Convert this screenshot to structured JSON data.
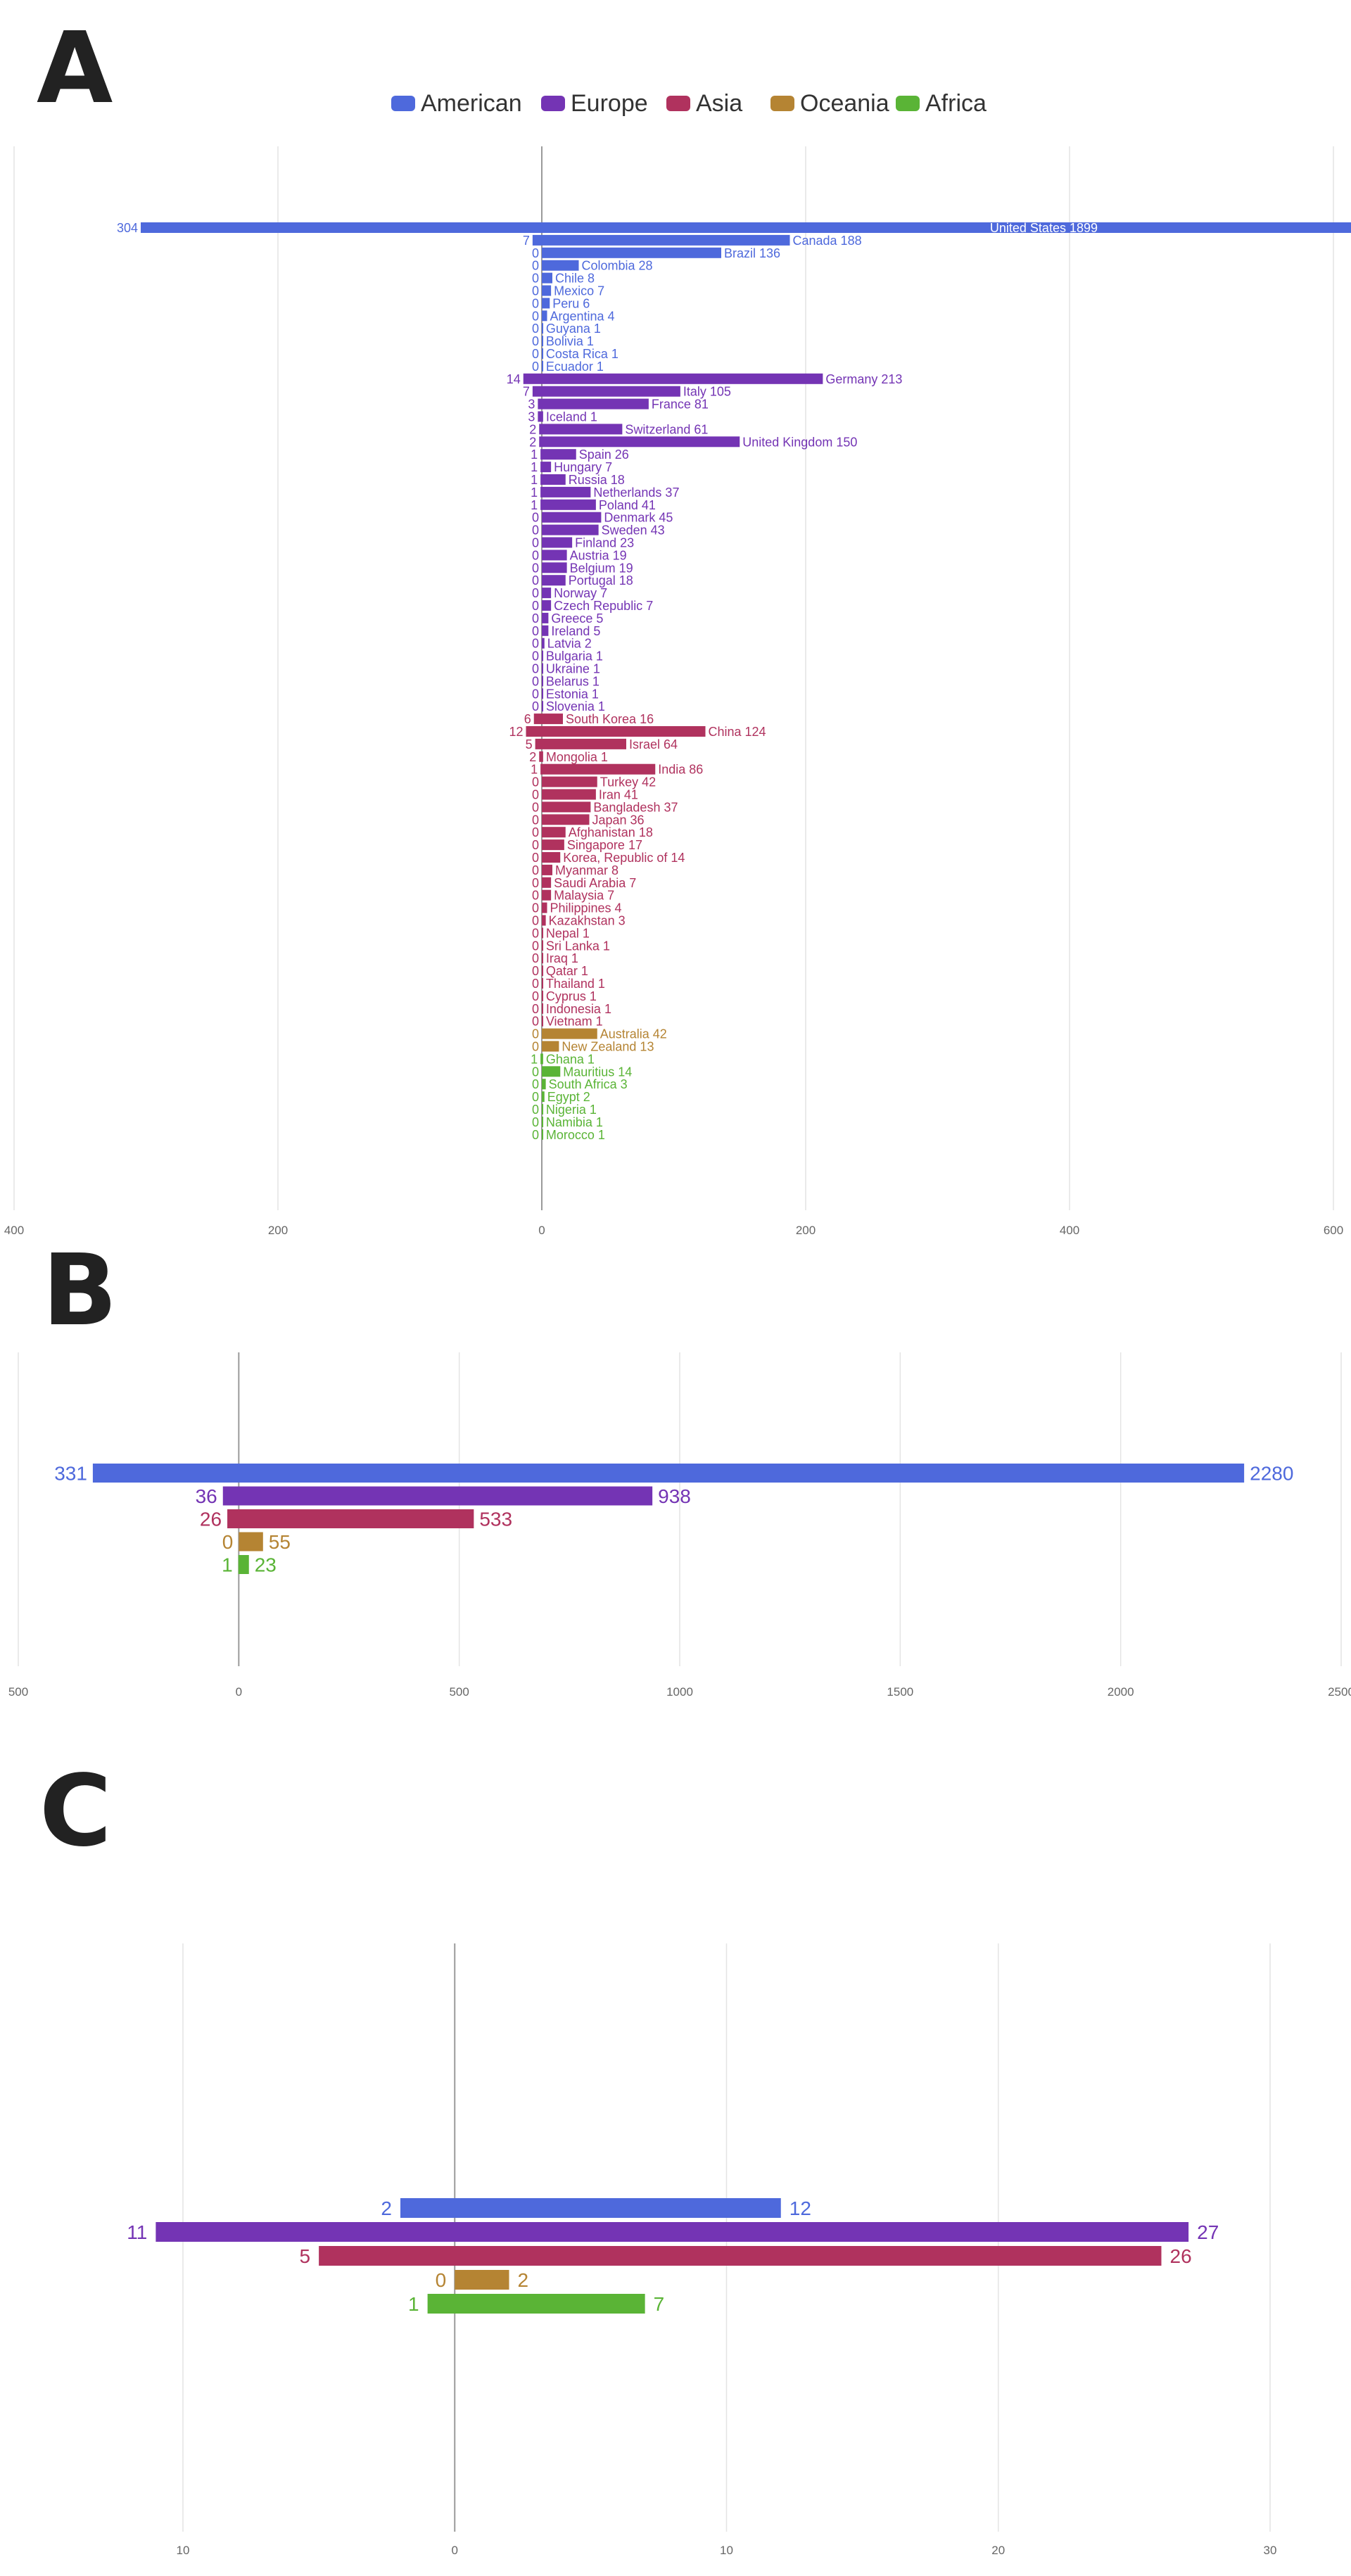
{
  "colors": {
    "American": "#4e69dc",
    "Europe": "#7434b4",
    "Asia": "#b0325e",
    "Oceania": "#b58433",
    "Africa": "#5ab436",
    "grid": "#e4e4e4",
    "zero": "#9a9a9a",
    "tick": "#666666"
  },
  "legend": [
    "American",
    "Europe",
    "Asia",
    "Oceania",
    "Africa"
  ],
  "chart_data": [
    {
      "type": "bar",
      "panel": "A",
      "orientation": "horizontal-diverging",
      "xlim": [
        -400,
        600
      ],
      "xticks": [
        -400,
        -200,
        0,
        200,
        400,
        600
      ],
      "tick_labels": [
        "400",
        "200",
        "0",
        "200",
        "400",
        "600"
      ],
      "grid": true,
      "legend_position": "top-center",
      "bars": [
        {
          "label": "United States",
          "left": 304,
          "right": 1899,
          "group": "American"
        },
        {
          "label": "Canada",
          "left": 7,
          "right": 188,
          "group": "American"
        },
        {
          "label": "Brazil",
          "left": 0,
          "right": 136,
          "group": "American"
        },
        {
          "label": "Colombia",
          "left": 0,
          "right": 28,
          "group": "American"
        },
        {
          "label": "Chile",
          "left": 0,
          "right": 8,
          "group": "American"
        },
        {
          "label": "Mexico",
          "left": 0,
          "right": 7,
          "group": "American"
        },
        {
          "label": "Peru",
          "left": 0,
          "right": 6,
          "group": "American"
        },
        {
          "label": "Argentina",
          "left": 0,
          "right": 4,
          "group": "American"
        },
        {
          "label": "Guyana",
          "left": 0,
          "right": 1,
          "group": "American"
        },
        {
          "label": "Bolivia",
          "left": 0,
          "right": 1,
          "group": "American"
        },
        {
          "label": "Costa Rica",
          "left": 0,
          "right": 1,
          "group": "American"
        },
        {
          "label": "Ecuador",
          "left": 0,
          "right": 1,
          "group": "American"
        },
        {
          "label": "Germany",
          "left": 14,
          "right": 213,
          "group": "Europe"
        },
        {
          "label": "Italy",
          "left": 7,
          "right": 105,
          "group": "Europe"
        },
        {
          "label": "France",
          "left": 3,
          "right": 81,
          "group": "Europe"
        },
        {
          "label": "Iceland",
          "left": 3,
          "right": 1,
          "group": "Europe"
        },
        {
          "label": "Switzerland",
          "left": 2,
          "right": 61,
          "group": "Europe"
        },
        {
          "label": "United Kingdom",
          "left": 2,
          "right": 150,
          "group": "Europe"
        },
        {
          "label": "Spain",
          "left": 1,
          "right": 26,
          "group": "Europe"
        },
        {
          "label": "Hungary",
          "left": 1,
          "right": 7,
          "group": "Europe"
        },
        {
          "label": "Russia",
          "left": 1,
          "right": 18,
          "group": "Europe"
        },
        {
          "label": "Netherlands",
          "left": 1,
          "right": 37,
          "group": "Europe"
        },
        {
          "label": "Poland",
          "left": 1,
          "right": 41,
          "group": "Europe"
        },
        {
          "label": "Denmark",
          "left": 0,
          "right": 45,
          "group": "Europe"
        },
        {
          "label": "Sweden",
          "left": 0,
          "right": 43,
          "group": "Europe"
        },
        {
          "label": "Finland",
          "left": 0,
          "right": 23,
          "group": "Europe"
        },
        {
          "label": "Austria",
          "left": 0,
          "right": 19,
          "group": "Europe"
        },
        {
          "label": "Belgium",
          "left": 0,
          "right": 19,
          "group": "Europe"
        },
        {
          "label": "Portugal",
          "left": 0,
          "right": 18,
          "group": "Europe"
        },
        {
          "label": "Norway",
          "left": 0,
          "right": 7,
          "group": "Europe"
        },
        {
          "label": "Czech Republic",
          "left": 0,
          "right": 7,
          "group": "Europe"
        },
        {
          "label": "Greece",
          "left": 0,
          "right": 5,
          "group": "Europe"
        },
        {
          "label": "Ireland",
          "left": 0,
          "right": 5,
          "group": "Europe"
        },
        {
          "label": "Latvia",
          "left": 0,
          "right": 2,
          "group": "Europe"
        },
        {
          "label": "Bulgaria",
          "left": 0,
          "right": 1,
          "group": "Europe"
        },
        {
          "label": "Ukraine",
          "left": 0,
          "right": 1,
          "group": "Europe"
        },
        {
          "label": "Belarus",
          "left": 0,
          "right": 1,
          "group": "Europe"
        },
        {
          "label": "Estonia",
          "left": 0,
          "right": 1,
          "group": "Europe"
        },
        {
          "label": "Slovenia",
          "left": 0,
          "right": 1,
          "group": "Europe"
        },
        {
          "label": "South Korea",
          "left": 6,
          "right": 16,
          "group": "Asia"
        },
        {
          "label": "China",
          "left": 12,
          "right": 124,
          "group": "Asia"
        },
        {
          "label": "Israel",
          "left": 5,
          "right": 64,
          "group": "Asia"
        },
        {
          "label": "Mongolia",
          "left": 2,
          "right": 1,
          "group": "Asia"
        },
        {
          "label": "India",
          "left": 1,
          "right": 86,
          "group": "Asia"
        },
        {
          "label": "Turkey",
          "left": 0,
          "right": 42,
          "group": "Asia"
        },
        {
          "label": "Iran",
          "left": 0,
          "right": 41,
          "group": "Asia"
        },
        {
          "label": "Bangladesh",
          "left": 0,
          "right": 37,
          "group": "Asia"
        },
        {
          "label": "Japan",
          "left": 0,
          "right": 36,
          "group": "Asia"
        },
        {
          "label": "Afghanistan",
          "left": 0,
          "right": 18,
          "group": "Asia"
        },
        {
          "label": "Singapore",
          "left": 0,
          "right": 17,
          "group": "Asia"
        },
        {
          "label": "Korea, Republic of",
          "left": 0,
          "right": 14,
          "group": "Asia"
        },
        {
          "label": "Myanmar",
          "left": 0,
          "right": 8,
          "group": "Asia"
        },
        {
          "label": "Saudi Arabia",
          "left": 0,
          "right": 7,
          "group": "Asia"
        },
        {
          "label": "Malaysia",
          "left": 0,
          "right": 7,
          "group": "Asia"
        },
        {
          "label": "Philippines",
          "left": 0,
          "right": 4,
          "group": "Asia"
        },
        {
          "label": "Kazakhstan",
          "left": 0,
          "right": 3,
          "group": "Asia"
        },
        {
          "label": "Nepal",
          "left": 0,
          "right": 1,
          "group": "Asia"
        },
        {
          "label": "Sri Lanka",
          "left": 0,
          "right": 1,
          "group": "Asia"
        },
        {
          "label": "Iraq",
          "left": 0,
          "right": 1,
          "group": "Asia"
        },
        {
          "label": "Qatar",
          "left": 0,
          "right": 1,
          "group": "Asia"
        },
        {
          "label": "Thailand",
          "left": 0,
          "right": 1,
          "group": "Asia"
        },
        {
          "label": "Cyprus",
          "left": 0,
          "right": 1,
          "group": "Asia"
        },
        {
          "label": "Indonesia",
          "left": 0,
          "right": 1,
          "group": "Asia"
        },
        {
          "label": "Vietnam",
          "left": 0,
          "right": 1,
          "group": "Asia"
        },
        {
          "label": "Australia",
          "left": 0,
          "right": 42,
          "group": "Oceania"
        },
        {
          "label": "New Zealand",
          "left": 0,
          "right": 13,
          "group": "Oceania"
        },
        {
          "label": "Ghana",
          "left": 1,
          "right": 1,
          "group": "Africa"
        },
        {
          "label": "Mauritius",
          "left": 0,
          "right": 14,
          "group": "Africa"
        },
        {
          "label": "South Africa",
          "left": 0,
          "right": 3,
          "group": "Africa"
        },
        {
          "label": "Egypt",
          "left": 0,
          "right": 2,
          "group": "Africa"
        },
        {
          "label": "Nigeria",
          "left": 0,
          "right": 1,
          "group": "Africa"
        },
        {
          "label": "Namibia",
          "left": 0,
          "right": 1,
          "group": "Africa"
        },
        {
          "label": "Morocco",
          "left": 0,
          "right": 1,
          "group": "Africa"
        }
      ]
    },
    {
      "type": "bar",
      "panel": "B",
      "orientation": "horizontal-diverging",
      "xlim": [
        -500,
        2500
      ],
      "xticks": [
        -500,
        0,
        500,
        1000,
        1500,
        2000,
        2500
      ],
      "tick_labels": [
        "500",
        "0",
        "500",
        "1000",
        "1500",
        "2000",
        "2500"
      ],
      "grid": true,
      "bars": [
        {
          "left": 331,
          "right": 2280,
          "group": "American"
        },
        {
          "left": 36,
          "right": 938,
          "group": "Europe"
        },
        {
          "left": 26,
          "right": 533,
          "group": "Asia"
        },
        {
          "left": 0,
          "right": 55,
          "group": "Oceania"
        },
        {
          "left": 1,
          "right": 23,
          "group": "Africa"
        }
      ]
    },
    {
      "type": "bar",
      "panel": "C",
      "orientation": "horizontal-diverging",
      "xlim": [
        -10,
        30
      ],
      "xticks": [
        -10,
        0,
        10,
        20,
        30
      ],
      "tick_labels": [
        "10",
        "0",
        "10",
        "20",
        "30"
      ],
      "grid": true,
      "bars": [
        {
          "left": 2,
          "right": 12,
          "group": "American"
        },
        {
          "left": 11,
          "right": 27,
          "group": "Europe"
        },
        {
          "left": 5,
          "right": 26,
          "group": "Asia"
        },
        {
          "left": 0,
          "right": 2,
          "group": "Oceania"
        },
        {
          "left": 1,
          "right": 7,
          "group": "Africa"
        }
      ]
    }
  ],
  "panels": {
    "A": "A",
    "B": "B",
    "C": "C"
  }
}
